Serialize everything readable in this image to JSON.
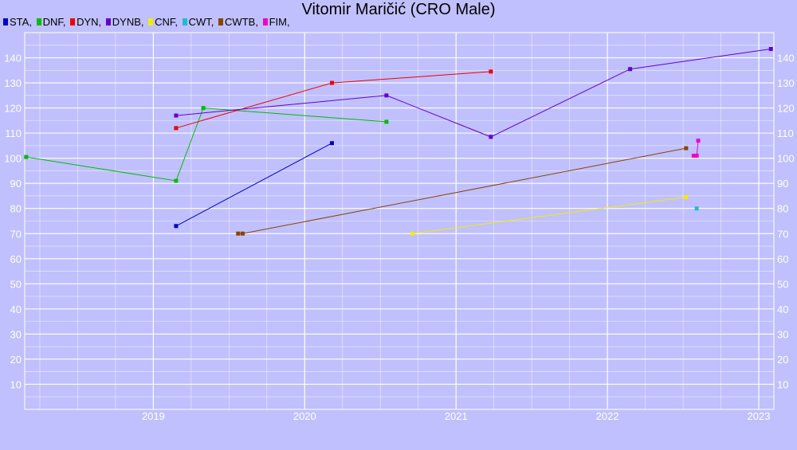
{
  "chart_data": {
    "type": "line",
    "title": "Vitomir Maričić (CRO Male)",
    "xlim": [
      2018.15,
      2023.1
    ],
    "ylim": [
      0,
      150
    ],
    "y_ticks": [
      10,
      20,
      30,
      40,
      50,
      60,
      70,
      80,
      90,
      100,
      110,
      120,
      130,
      140
    ],
    "x_ticks": [
      2019,
      2020,
      2021,
      2022,
      2023
    ],
    "x_tick_labels": [
      "2019",
      "2020",
      "2021",
      "2022",
      "2023"
    ],
    "grid": true,
    "legend_position": "top-left",
    "series": [
      {
        "name": "STA",
        "color": "#0000cc",
        "points": [
          [
            2019.15,
            73
          ],
          [
            2020.18,
            106
          ]
        ]
      },
      {
        "name": "DNF",
        "color": "#00bb00",
        "points": [
          [
            2018.16,
            100.5
          ],
          [
            2019.15,
            91
          ],
          [
            2019.33,
            120
          ],
          [
            2020.54,
            114.5
          ]
        ]
      },
      {
        "name": "DYN",
        "color": "#ee0000",
        "points": [
          [
            2019.15,
            112
          ],
          [
            2020.18,
            130
          ],
          [
            2021.23,
            134.5
          ]
        ]
      },
      {
        "name": "DYNB",
        "color": "#6600cc",
        "points": [
          [
            2019.15,
            117
          ],
          [
            2020.54,
            125
          ],
          [
            2021.23,
            108.5
          ],
          [
            2022.15,
            135.5
          ],
          [
            2023.08,
            143.5
          ]
        ]
      },
      {
        "name": "CNF",
        "color": "#eeee00",
        "points": [
          [
            2020.71,
            70
          ],
          [
            2022.52,
            84.5
          ]
        ]
      },
      {
        "name": "CWT",
        "color": "#22bbcc",
        "points": [
          [
            2022.59,
            80
          ]
        ]
      },
      {
        "name": "CWTB",
        "color": "#884400",
        "points": [
          [
            2019.56,
            70
          ],
          [
            2019.59,
            70
          ],
          [
            2022.52,
            104
          ]
        ]
      },
      {
        "name": "FIM",
        "color": "#ee00cc",
        "points": [
          [
            2022.57,
            101
          ],
          [
            2022.59,
            101
          ],
          [
            2022.6,
            107
          ]
        ]
      }
    ]
  }
}
